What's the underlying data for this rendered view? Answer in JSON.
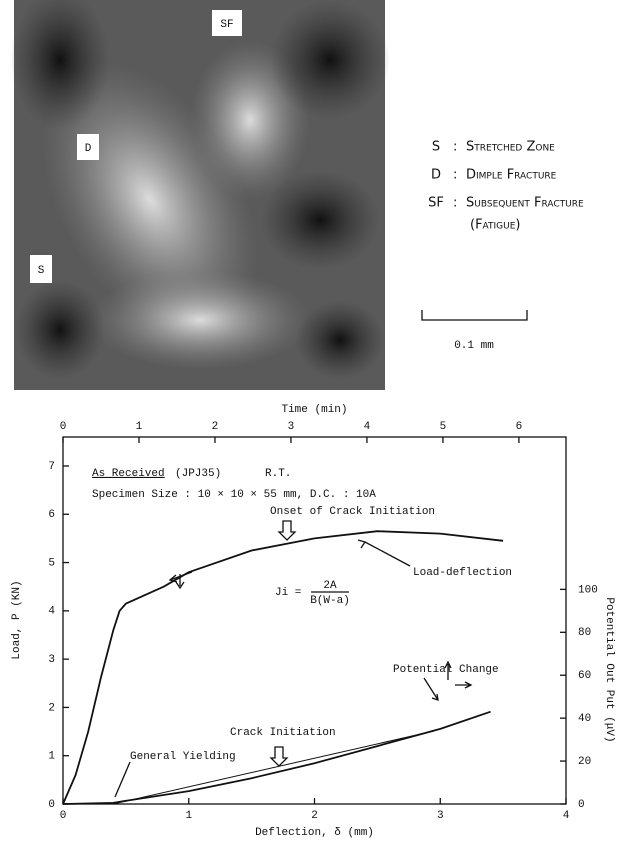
{
  "figure": {
    "micrograph_labels": [
      "SF",
      "D",
      "S"
    ],
    "legend": [
      {
        "key": "S",
        "sep": ":",
        "text": "Stretched Zone"
      },
      {
        "key": "D",
        "sep": ":",
        "text": "Dimple Fracture"
      },
      {
        "key": "SF",
        "sep": ":",
        "text": "Subsequent Fracture",
        "note": "(Fatigue)"
      }
    ],
    "scale_bar": "0.1 mm"
  },
  "chart_data": {
    "type": "line",
    "xlabel": "Deflection, δ (mm)",
    "x2label": "Time (min)",
    "ylabel": "Load, P (KN)",
    "y2label": "Potential Out Put (μV)",
    "xlim": [
      0,
      4
    ],
    "xticks": [
      0,
      1,
      2,
      3,
      4
    ],
    "x2lim": [
      0,
      6.62
    ],
    "x2ticks": [
      0,
      1,
      2,
      3,
      4,
      5,
      6
    ],
    "ylim": [
      0,
      7.6
    ],
    "yticks": [
      0,
      1,
      2,
      3,
      4,
      5,
      6,
      7
    ],
    "y2lim": [
      0,
      171
    ],
    "y2ticks": [
      0,
      20,
      40,
      60,
      80,
      100
    ],
    "series": [
      {
        "color": "#111111",
        "axis": "y",
        "x": [
          0,
          0.1,
          0.2,
          0.3,
          0.4,
          0.45,
          0.5,
          0.8,
          1.0,
          1.5,
          2.0,
          2.5,
          3.0,
          3.5
        ],
        "values": [
          0,
          0.6,
          1.5,
          2.6,
          3.6,
          4.0,
          4.15,
          4.5,
          4.8,
          5.25,
          5.5,
          5.65,
          5.6,
          5.45
        ]
      },
      {
        "color": "#111111",
        "axis": "y2",
        "x": [
          0,
          0.4,
          0.5,
          1.0,
          1.5,
          2.0,
          2.5,
          3.0,
          3.4
        ],
        "values": [
          0,
          0.5,
          1.5,
          6,
          12,
          19,
          27,
          35,
          43
        ]
      },
      {
        "color": "#111111",
        "axis": "y2",
        "thin": true,
        "x": [
          0.4,
          2.95
        ],
        "values": [
          0,
          34
        ]
      }
    ],
    "annotations": {
      "condition": "As Received",
      "material": "(JPJ35)",
      "temperature": "R.T.",
      "specimen": "Specimen Size : 10 × 10 × 55 mm, D.C. : 10A",
      "onset": "Onset of Crack Initiation",
      "load_curve": "Load-deflection",
      "ji_lhs": "Ji =",
      "ji_num": "2A",
      "ji_den": "B(W-a)",
      "potential_curve": "Potential Change",
      "crack_initiation": "Crack Initiation",
      "general_yielding": "General Yielding"
    }
  }
}
